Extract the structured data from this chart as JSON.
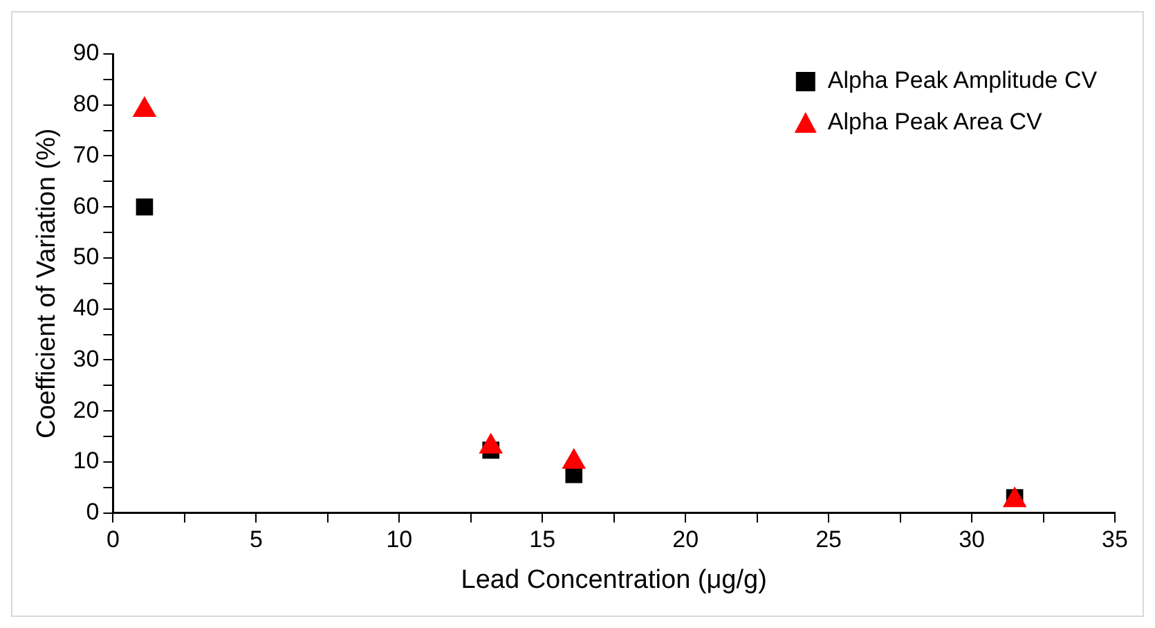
{
  "chart_data": {
    "type": "scatter",
    "xlabel": "Lead Concentration (μg/g)",
    "ylabel": "Coefficient of Variation (%)",
    "xlim": [
      0,
      35
    ],
    "ylim": [
      0,
      90
    ],
    "xticks": [
      0,
      {
        "value": 2.5,
        "label": null
      },
      5,
      {
        "value": 7.5,
        "label": null
      },
      10,
      {
        "value": 12.5,
        "label": null
      },
      15,
      {
        "value": 17.5,
        "label": null
      },
      20,
      {
        "value": 22.5,
        "label": null
      },
      25,
      {
        "value": 27.5,
        "label": null
      },
      30,
      {
        "value": 32.5,
        "label": null
      },
      35
    ],
    "yticks": [
      0,
      {
        "value": 5,
        "label": null
      },
      10,
      {
        "value": 15,
        "label": null
      },
      20,
      {
        "value": 25,
        "label": null
      },
      30,
      {
        "value": 35,
        "label": null
      },
      40,
      {
        "value": 45,
        "label": null
      },
      50,
      {
        "value": 55,
        "label": null
      },
      60,
      {
        "value": 65,
        "label": null
      },
      70,
      {
        "value": 75,
        "label": null
      },
      80,
      {
        "value": 85,
        "label": null
      },
      90
    ],
    "x": [
      1.1,
      13.2,
      16.1,
      31.5
    ],
    "grid": false,
    "legend": "top right",
    "series": [
      {
        "name": "Alpha Peak Amplitude CV",
        "color": "#000000",
        "marker": "square",
        "values": [
          60,
          12.3,
          7.5,
          3
        ]
      },
      {
        "name": "Alpha Peak Area CV",
        "color": "#ff0000",
        "marker": "triangle",
        "values": [
          79,
          13,
          10,
          2.5
        ]
      }
    ]
  }
}
